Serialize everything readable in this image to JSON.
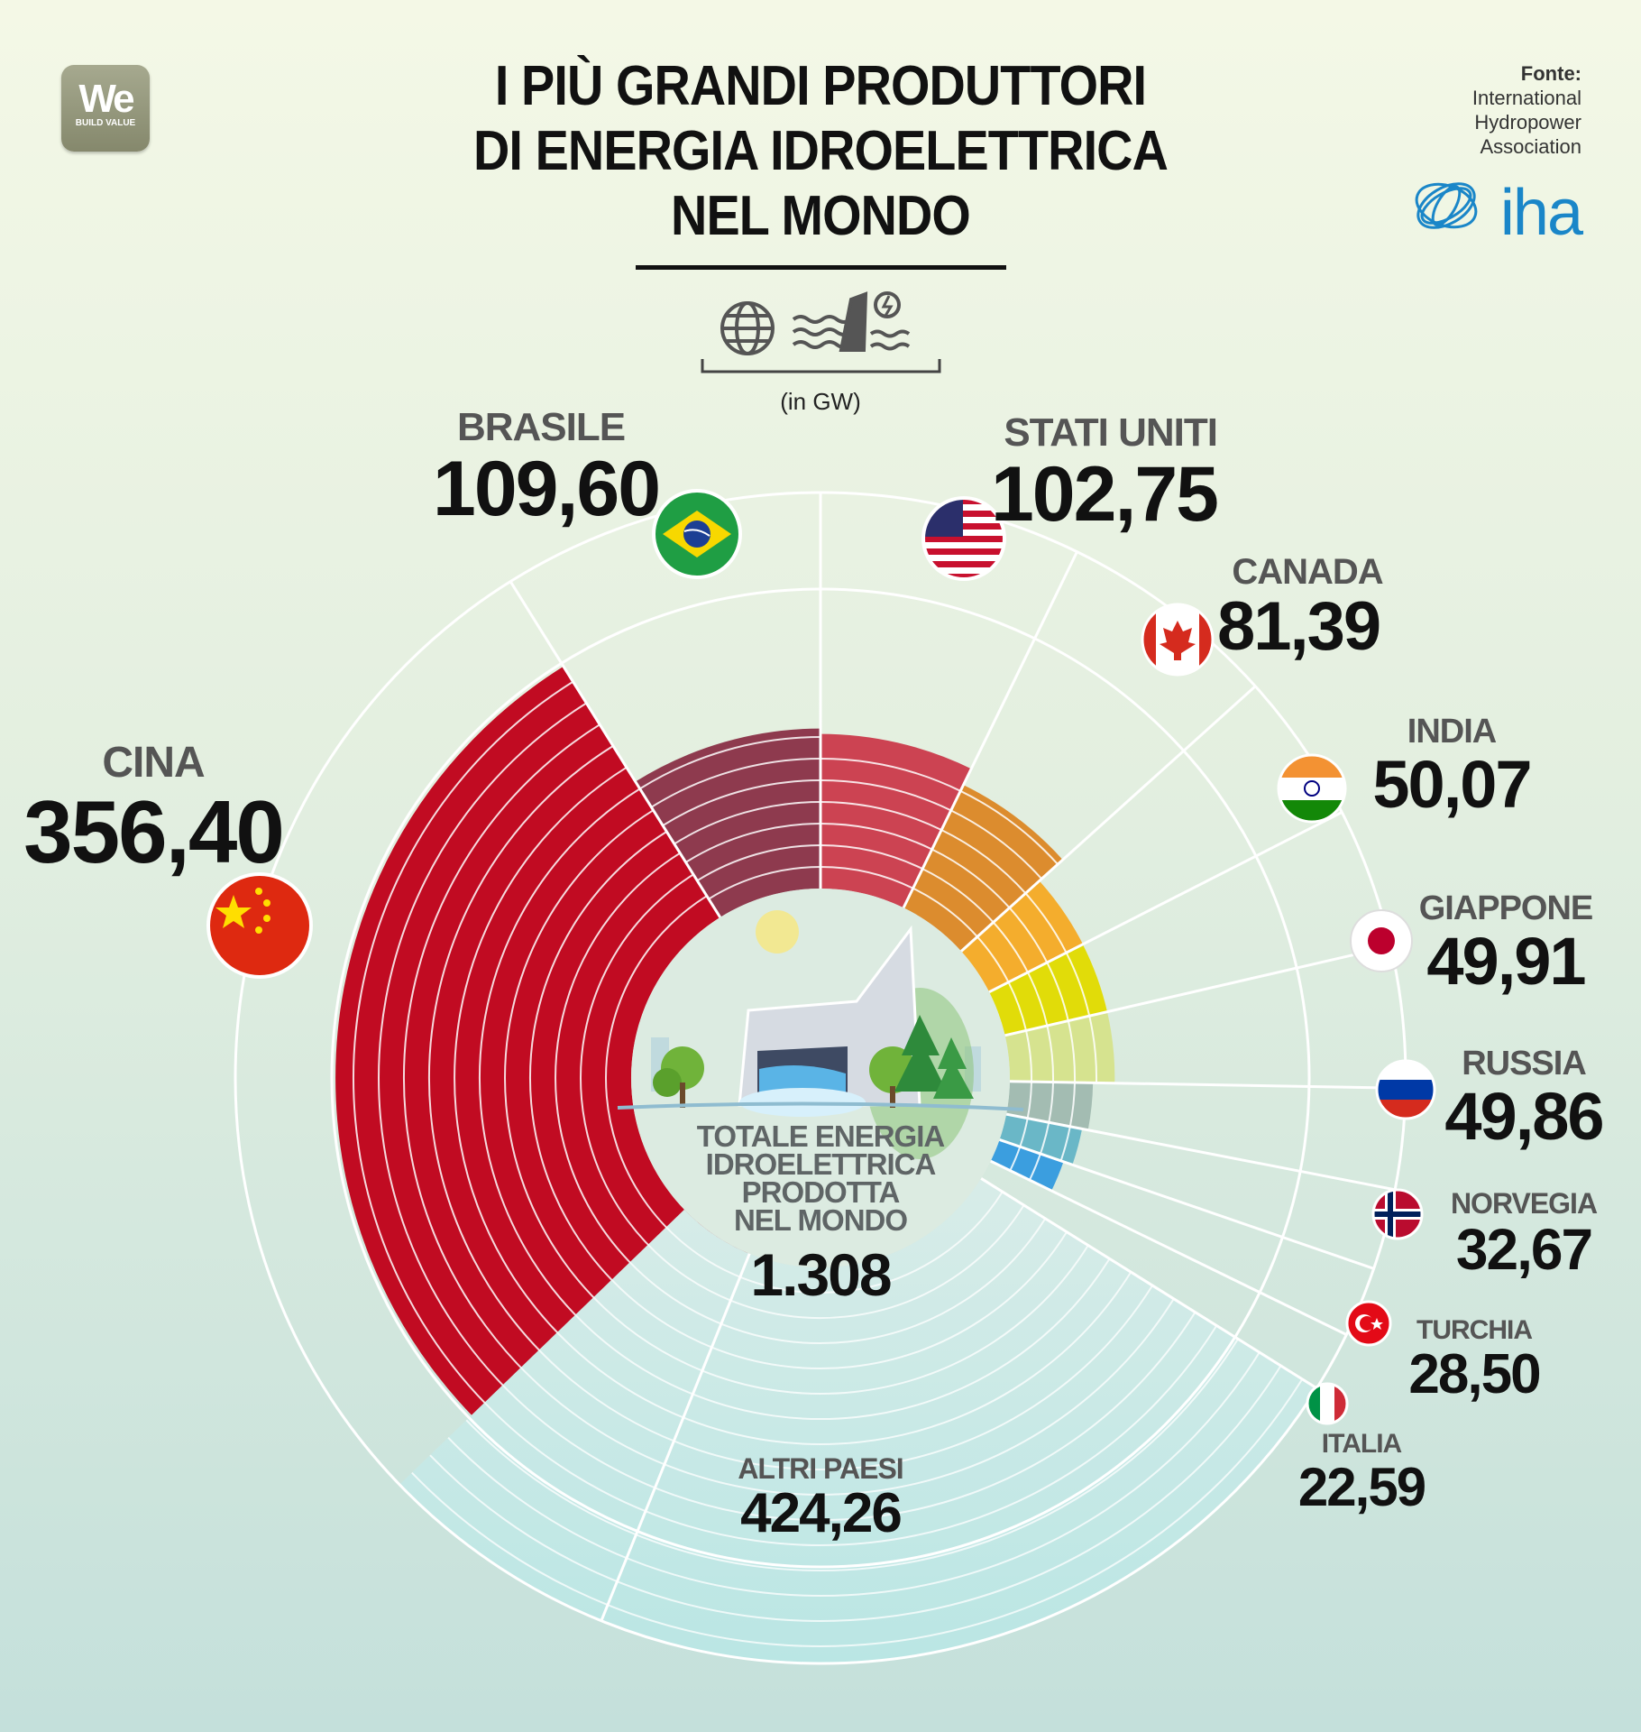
{
  "header": {
    "title_lines": [
      "I PIÙ GRANDI PRODUTTORI",
      "DI ENERGIA IDROELETTRICA",
      "NEL MONDO"
    ],
    "unit": "(in GW)",
    "logo_main": "We",
    "logo_sub": "BUILD VALUE",
    "source_label": "Fonte:",
    "source_lines": [
      "International",
      "Hydropower",
      "Association"
    ],
    "source_logo_text": "iha"
  },
  "icons": [
    "globe-icon",
    "dam-icon"
  ],
  "center": {
    "label_lines": [
      "TOTALE  ENERGIA",
      "IDROELETTRICA",
      "PRODOTTA",
      "NEL MONDO"
    ],
    "value": "1.308"
  },
  "colors": {
    "cina": "#c10b22",
    "brasile": "#8e3a4e",
    "stati_uniti": "#cc4352",
    "canada": "#dc8c2e",
    "india": "#f4ad2d",
    "giappone": "#e1dc09",
    "russia": "#d6e38f",
    "norvegia": "#a3bcb2",
    "turchia": "#6ab7c7",
    "italia": "#3b9edf",
    "altri_paesi": "#bae6e4",
    "accent_blue": "#1a86c8"
  },
  "chart_data": {
    "type": "pie",
    "title": "I PIÙ GRANDI PRODUTTORI DI ENERGIA IDROELETTRICA NEL MONDO",
    "unit": "GW",
    "total": 1308,
    "total_label": "1.308",
    "slices": [
      {
        "name": "CINA",
        "value": 356.4,
        "label": "356,40",
        "flag": "china-flag-icon"
      },
      {
        "name": "BRASILE",
        "value": 109.6,
        "label": "109,60",
        "flag": "brazil-flag-icon"
      },
      {
        "name": "STATI UNITI",
        "value": 102.75,
        "label": "102,75",
        "flag": "usa-flag-icon"
      },
      {
        "name": "CANADA",
        "value": 81.39,
        "label": "81,39",
        "flag": "canada-flag-icon"
      },
      {
        "name": "INDIA",
        "value": 50.07,
        "label": "50,07",
        "flag": "india-flag-icon"
      },
      {
        "name": "GIAPPONE",
        "value": 49.91,
        "label": "49,91",
        "flag": "japan-flag-icon"
      },
      {
        "name": "RUSSIA",
        "value": 49.86,
        "label": "49,86",
        "flag": "russia-flag-icon"
      },
      {
        "name": "NORVEGIA",
        "value": 32.67,
        "label": "32,67",
        "flag": "norway-flag-icon"
      },
      {
        "name": "TURCHIA",
        "value": 28.5,
        "label": "28,50",
        "flag": "turkey-flag-icon"
      },
      {
        "name": "ITALIA",
        "value": 22.59,
        "label": "22,59",
        "flag": null
      },
      {
        "name": "ALTRI PAESI",
        "value": 424.26,
        "label": "424,26",
        "flag": null
      }
    ]
  }
}
